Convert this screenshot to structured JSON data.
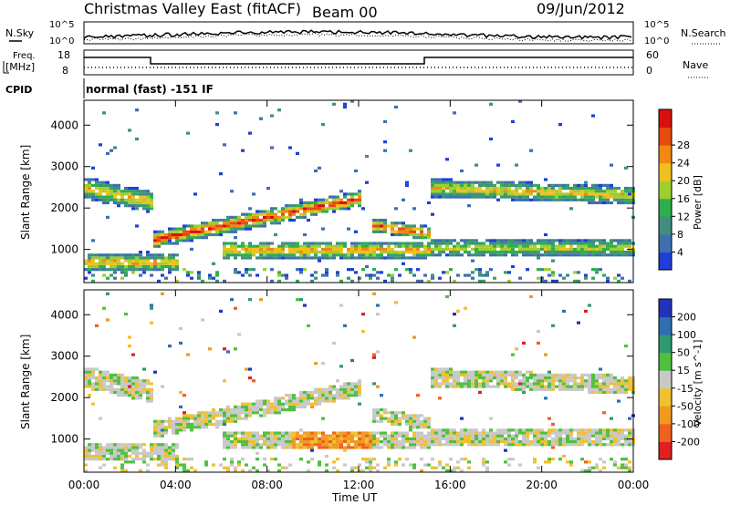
{
  "header": {
    "title": "Christmas Valley East (fitACF)",
    "beam": "Beam 00",
    "date": "09/Jun/2012"
  },
  "noise_panel": {
    "left_label": "N.Sky",
    "right_label": "N.Search",
    "left_ticks": [
      "10^5",
      "10^0"
    ],
    "right_ticks": [
      "10^5",
      "10^0"
    ]
  },
  "freq_panel": {
    "left_label_1": "Freq.",
    "left_label_2": "[MHz]",
    "right_label": "Nave",
    "left_ticks": [
      "18",
      "8"
    ],
    "right_ticks": [
      "60",
      "0"
    ]
  },
  "cpid_panel": {
    "label": "CPID",
    "text": "normal (fast) -151 IF"
  },
  "chart_data": [
    {
      "type": "heatmap",
      "name": "power",
      "ylabel": "Slant Range [km]",
      "yticks": [
        1000,
        2000,
        3000,
        4000
      ],
      "ylim": [
        200,
        4600
      ],
      "colorbar": {
        "label": "Power [dB]",
        "ticks": [
          4,
          8,
          12,
          16,
          20,
          24,
          28
        ],
        "colors": [
          "#1f3fd8",
          "#3f6fb0",
          "#3f8f80",
          "#2fae4f",
          "#9fcf2f",
          "#f0c020",
          "#f08a10",
          "#e84a10",
          "#d81010"
        ]
      }
    },
    {
      "type": "heatmap",
      "name": "velocity",
      "ylabel": "Slant Range [km]",
      "yticks": [
        1000,
        2000,
        3000,
        4000
      ],
      "ylim": [
        200,
        4600
      ],
      "colorbar": {
        "label": "Velocity [m s^-1]",
        "ticks": [
          "200",
          "100",
          "50",
          "15",
          "-15",
          "-50",
          "-100",
          "-200"
        ],
        "colors": [
          "#2233bb",
          "#2f6fb0",
          "#2f9a6f",
          "#4fc040",
          "#c8c8c8",
          "#f0c030",
          "#f09a20",
          "#f06020",
          "#e02020"
        ]
      }
    }
  ],
  "xaxis": {
    "label": "Time UT",
    "ticks": [
      "00:00",
      "04:00",
      "08:00",
      "12:00",
      "16:00",
      "20:00",
      "00:00"
    ]
  }
}
